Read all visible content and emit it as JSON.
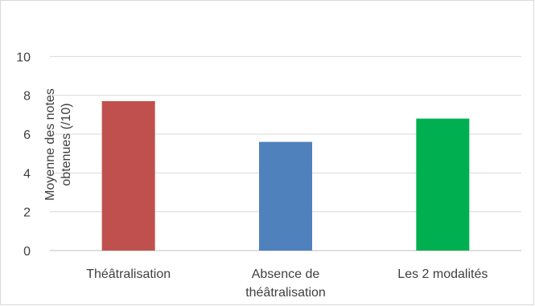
{
  "chart_data": {
    "type": "bar",
    "title": "",
    "ylabel_lines": [
      "Moyenne des notes",
      "obtenues (/10)"
    ],
    "xlabel": "",
    "categories": [
      [
        "Théâtralisation"
      ],
      [
        "Absence de",
        "théâtralisation"
      ],
      [
        "Les 2 modalités"
      ]
    ],
    "values": [
      7.7,
      5.6,
      6.8
    ],
    "bar_colors": [
      "#c0504d",
      "#4f81bd",
      "#00b050"
    ],
    "ylim": [
      0,
      12
    ],
    "yticks": [
      0,
      2,
      4,
      6,
      8,
      10
    ],
    "grid": true,
    "legend": "none"
  }
}
